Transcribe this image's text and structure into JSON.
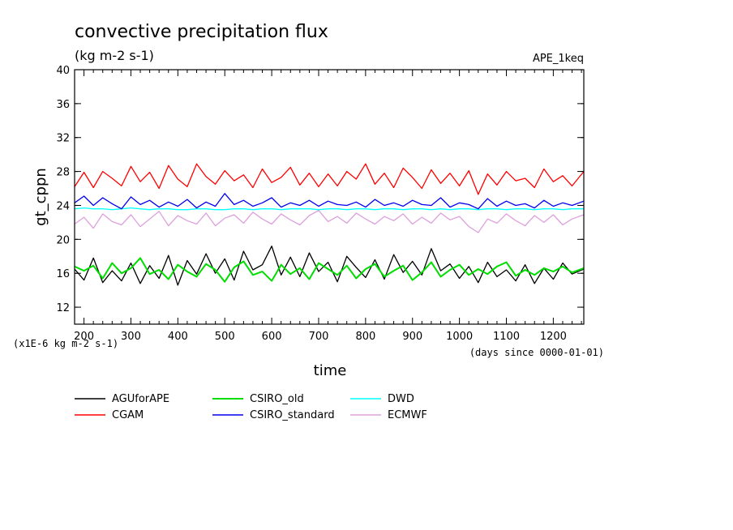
{
  "chart_data": {
    "type": "line",
    "title": "convective precipitation flux",
    "units": "(kg m-2 s-1)",
    "experiment": "APE_1keq",
    "ylabel": "gt_cppn",
    "xlabel": "time",
    "y_scale_note": "(x1E-6 kg m-2 s-1)",
    "x_unit_note": "(days since 0000-01-01)",
    "xlim": [
      180,
      1265
    ],
    "ylim": [
      10,
      40
    ],
    "x_ticks": [
      200,
      300,
      400,
      500,
      600,
      700,
      800,
      900,
      1000,
      1100,
      1200
    ],
    "y_ticks": [
      12,
      16,
      20,
      24,
      28,
      32,
      36,
      40
    ],
    "grid": false,
    "legend_position": "bottom-left",
    "x": [
      180,
      200,
      220,
      240,
      260,
      280,
      300,
      320,
      340,
      360,
      380,
      400,
      420,
      440,
      460,
      480,
      500,
      520,
      540,
      560,
      580,
      600,
      620,
      640,
      660,
      680,
      700,
      720,
      740,
      760,
      780,
      800,
      820,
      840,
      860,
      880,
      900,
      920,
      940,
      960,
      980,
      1000,
      1020,
      1040,
      1060,
      1080,
      1100,
      1120,
      1140,
      1160,
      1180,
      1200,
      1220,
      1240,
      1265
    ],
    "series": [
      {
        "name": "AGUforAPE",
        "color": "#000000",
        "values": [
          16.5,
          15.2,
          17.8,
          14.9,
          16.3,
          15.1,
          17.2,
          14.8,
          16.9,
          15.4,
          18.1,
          14.6,
          17.5,
          15.9,
          18.3,
          16.0,
          17.7,
          15.2,
          18.6,
          16.4,
          17.0,
          19.2,
          15.8,
          17.9,
          15.6,
          18.4,
          16.2,
          17.3,
          15.0,
          18.0,
          16.7,
          15.5,
          17.6,
          15.3,
          18.2,
          16.1,
          17.4,
          15.8,
          18.9,
          16.3,
          17.1,
          15.4,
          16.8,
          14.9,
          17.3,
          15.6,
          16.4,
          15.1,
          17.0,
          14.8,
          16.6,
          15.3,
          17.2,
          15.9,
          16.5
        ]
      },
      {
        "name": "CGAM",
        "color": "#ff0000",
        "values": [
          26.2,
          27.9,
          26.1,
          28.0,
          27.2,
          26.3,
          28.6,
          26.8,
          27.9,
          26.0,
          28.7,
          27.1,
          26.2,
          28.9,
          27.4,
          26.5,
          28.1,
          26.9,
          27.6,
          26.1,
          28.3,
          26.7,
          27.3,
          28.5,
          26.4,
          27.8,
          26.2,
          27.7,
          26.3,
          28.0,
          27.1,
          28.9,
          26.5,
          27.8,
          26.1,
          28.4,
          27.3,
          26.0,
          28.2,
          26.6,
          27.8,
          26.3,
          28.1,
          25.3,
          27.7,
          26.4,
          28.0,
          26.9,
          27.2,
          26.1,
          28.3,
          26.8,
          27.5,
          26.3,
          28.0
        ]
      },
      {
        "name": "CSIRO_standard",
        "color": "#0000ee",
        "values": [
          24.3,
          25.1,
          24.0,
          24.9,
          24.2,
          23.6,
          25.0,
          24.1,
          24.6,
          23.8,
          24.4,
          23.9,
          24.7,
          23.7,
          24.4,
          23.9,
          25.4,
          24.1,
          24.6,
          23.9,
          24.3,
          24.9,
          23.8,
          24.3,
          24.0,
          24.6,
          23.9,
          24.5,
          24.1,
          24.0,
          24.4,
          23.8,
          24.7,
          24.0,
          24.3,
          23.9,
          24.6,
          24.1,
          24.0,
          24.9,
          23.8,
          24.3,
          24.1,
          23.6,
          24.8,
          23.9,
          24.5,
          24.0,
          24.2,
          23.7,
          24.6,
          23.9,
          24.3,
          24.0,
          24.5
        ]
      },
      {
        "name": "CSIRO_old",
        "color": "#00dd00",
        "values": [
          16.8,
          16.3,
          16.9,
          15.4,
          17.2,
          16.0,
          16.6,
          17.8,
          15.9,
          16.4,
          15.3,
          17.0,
          16.2,
          15.6,
          17.1,
          16.4,
          15.0,
          16.7,
          17.4,
          15.8,
          16.2,
          15.1,
          17.0,
          15.9,
          16.6,
          15.3,
          17.2,
          16.5,
          15.8,
          16.9,
          15.4,
          16.5,
          17.1,
          15.6,
          16.3,
          16.9,
          15.2,
          16.1,
          17.3,
          15.6,
          16.4,
          17.0,
          15.8,
          16.5,
          15.9,
          16.8,
          17.3,
          15.7,
          16.4,
          15.8,
          16.6,
          16.2,
          16.8,
          16.1,
          16.6
        ]
      },
      {
        "name": "DWD",
        "color": "#00ffff",
        "values": [
          23.6,
          23.7,
          23.6,
          23.6,
          23.5,
          23.6,
          23.7,
          23.6,
          23.5,
          23.6,
          23.6,
          23.5,
          23.5,
          23.6,
          23.6,
          23.5,
          23.5,
          23.6,
          23.6,
          23.5,
          23.6,
          23.6,
          23.5,
          23.6,
          23.6,
          23.6,
          23.5,
          23.6,
          23.6,
          23.5,
          23.6,
          23.6,
          23.5,
          23.6,
          23.6,
          23.5,
          23.6,
          23.6,
          23.5,
          23.6,
          23.5,
          23.6,
          23.6,
          23.5,
          23.6,
          23.6,
          23.5,
          23.6,
          23.6,
          23.5,
          23.6,
          23.6,
          23.5,
          23.6,
          23.6
        ]
      },
      {
        "name": "ECMWF",
        "color": "#dda0dd",
        "values": [
          21.8,
          22.6,
          21.3,
          23.0,
          22.1,
          21.7,
          22.9,
          21.5,
          22.4,
          23.3,
          21.6,
          22.8,
          22.2,
          21.8,
          23.1,
          21.6,
          22.5,
          22.9,
          21.9,
          23.2,
          22.4,
          21.8,
          23.0,
          22.3,
          21.7,
          22.8,
          23.4,
          22.1,
          22.7,
          21.9,
          23.1,
          22.4,
          21.8,
          22.7,
          22.2,
          23.0,
          21.8,
          22.6,
          21.9,
          23.1,
          22.3,
          22.7,
          21.5,
          20.8,
          22.4,
          21.9,
          23.0,
          22.2,
          21.6,
          22.8,
          22.0,
          22.9,
          21.7,
          22.4,
          22.9
        ]
      }
    ],
    "legend": {
      "columns": [
        [
          "AGUforAPE",
          "CGAM"
        ],
        [
          "CSIRO_old",
          "CSIRO_standard"
        ],
        [
          "DWD",
          "ECMWF"
        ]
      ]
    }
  }
}
